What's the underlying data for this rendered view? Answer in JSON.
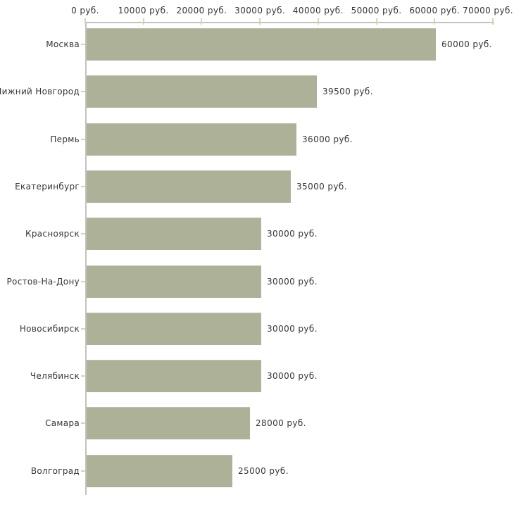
{
  "chart_data": {
    "type": "bar",
    "orientation": "horizontal",
    "title": "",
    "categories": [
      "Москва",
      "Нижний Новгород",
      "Пермь",
      "Екатеринбург",
      "Красноярск",
      "Ростов-На-Дону",
      "Новосибирск",
      "Челябинск",
      "Самара",
      "Волгоград"
    ],
    "values": [
      60000,
      39500,
      36000,
      35000,
      30000,
      30000,
      30000,
      30000,
      28000,
      25000
    ],
    "value_labels": [
      "60000 руб.",
      "39500 руб.",
      "36000 руб.",
      "35000 руб.",
      "30000 руб.",
      "30000 руб.",
      "30000 руб.",
      "30000 руб.",
      "28000 руб.",
      "25000 руб."
    ],
    "x_axis": {
      "max": 70000,
      "tick_values": [
        0,
        10000,
        20000,
        30000,
        40000,
        50000,
        60000,
        70000
      ],
      "tick_labels": [
        "0 руб.",
        "10000 руб.",
        "20000 руб.",
        "30000 руб.",
        "40000 руб.",
        "50000 руб.",
        "60000 руб.",
        "70000 руб."
      ]
    },
    "xlim": [
      0,
      70000
    ],
    "grid": "off",
    "legend": "none",
    "colors": {
      "bar_fill": "#acb198",
      "bar_edge": "#bcc2a9",
      "axis_line": "#c3c2c0",
      "tick_mark": "#d8d5ad",
      "text": "#363636",
      "background": "#ffffff"
    }
  }
}
